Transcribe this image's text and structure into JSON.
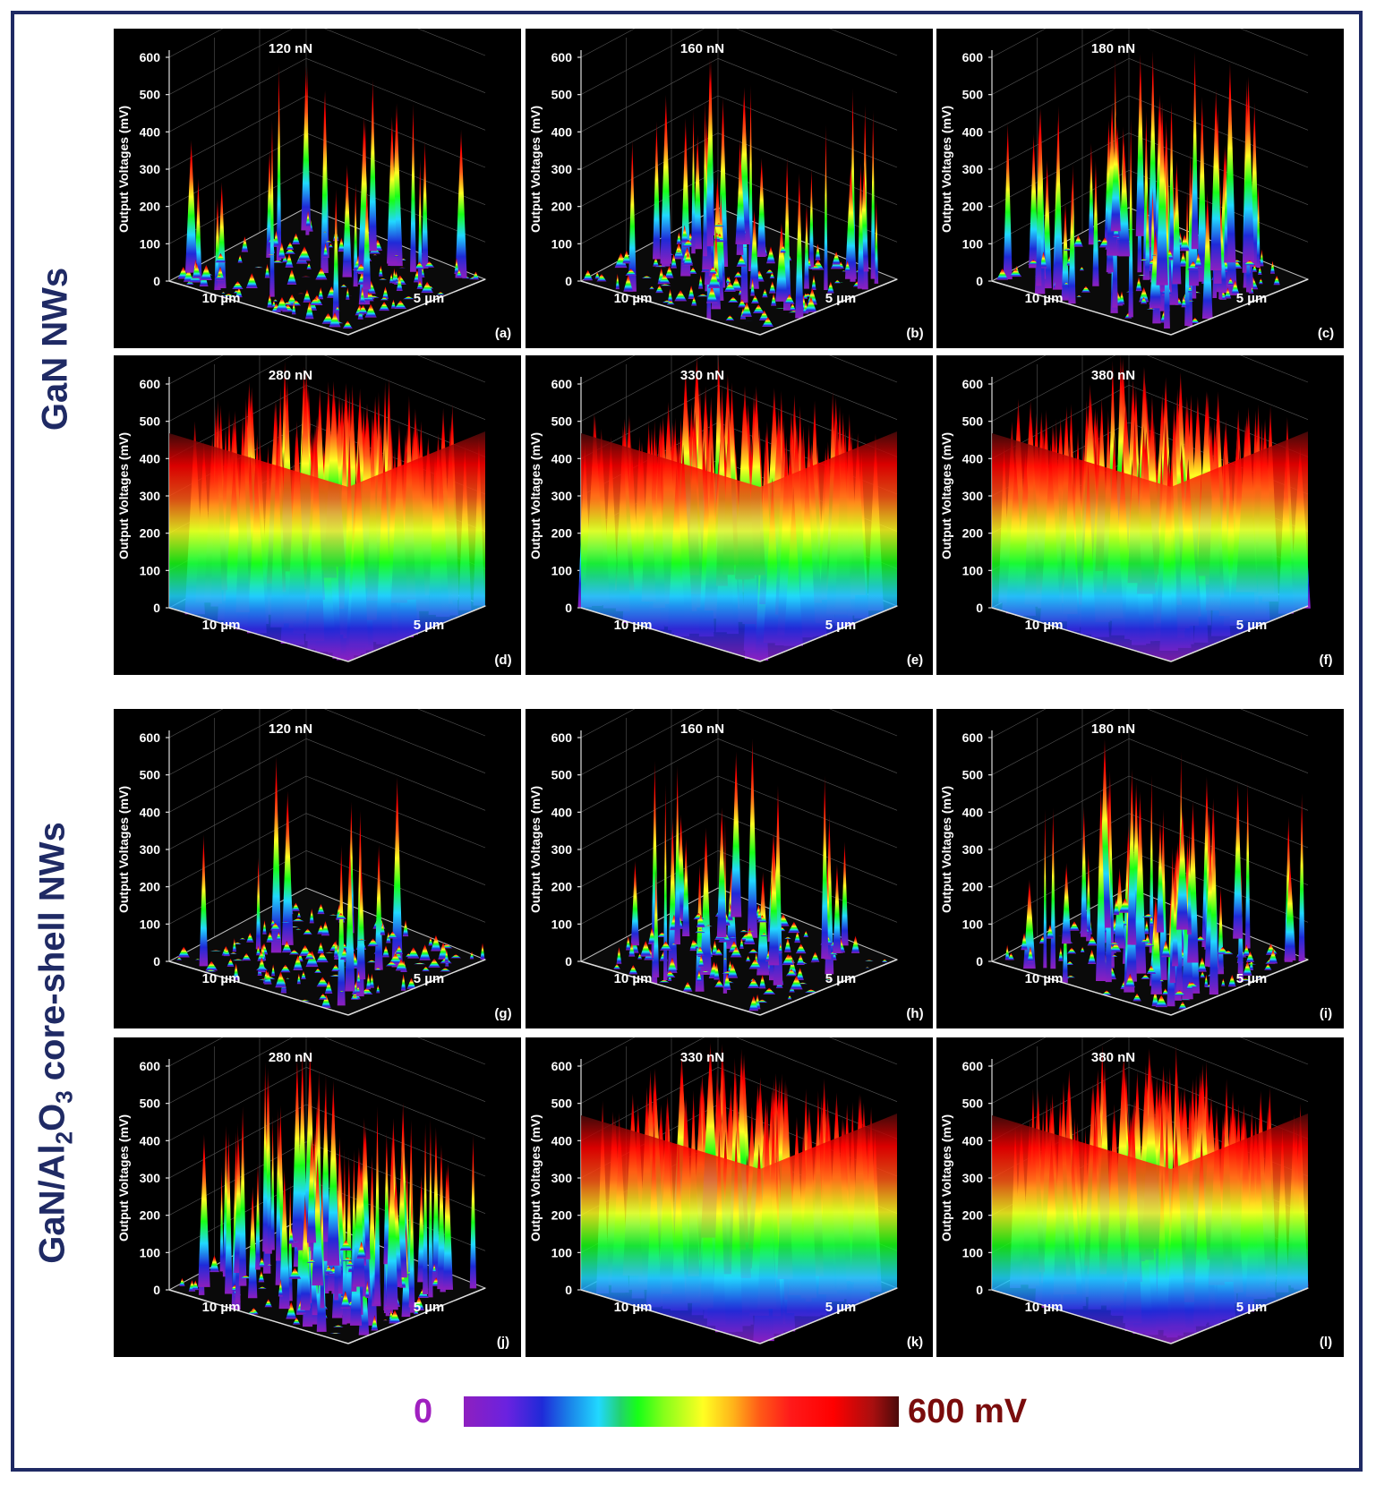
{
  "groups": [
    {
      "label": "GaN NWs"
    },
    {
      "label_parts": [
        "GaN/Al",
        "2",
        "O",
        "3",
        " core-shell NWs"
      ]
    }
  ],
  "colorbar": {
    "min_label": "0",
    "max_label": "600 mV",
    "stops": [
      "#8e1fbf",
      "#1f2ad8",
      "#21d8ff",
      "#17ff17",
      "#ffff22",
      "#ff5a17",
      "#ff0000",
      "#4a0a0a"
    ]
  },
  "chart_data": [
    {
      "type": "3d-surface",
      "panel": "(a)",
      "title": "120 nN",
      "zlabel": "Output Voltages (mV)",
      "zticks": [
        "0",
        "100",
        "200",
        "300",
        "400",
        "500",
        "600"
      ],
      "zlim": [
        0,
        600
      ],
      "x_label": "10 µm",
      "y_label": "5 µm",
      "density": 0.12,
      "plateau": 0
    },
    {
      "type": "3d-surface",
      "panel": "(b)",
      "title": "160 nN",
      "zlabel": "Output Voltages (mV)",
      "zticks": [
        "0",
        "100",
        "200",
        "300",
        "400",
        "500",
        "600"
      ],
      "zlim": [
        0,
        600
      ],
      "x_label": "10 µm",
      "y_label": "5 µm",
      "density": 0.28,
      "plateau": 0
    },
    {
      "type": "3d-surface",
      "panel": "(c)",
      "title": "180 nN",
      "zlabel": "Output Voltages (mV)",
      "zticks": [
        "0",
        "100",
        "200",
        "300",
        "400",
        "500",
        "600"
      ],
      "zlim": [
        0,
        600
      ],
      "x_label": "10 µm",
      "y_label": "5 µm",
      "density": 0.45,
      "plateau": 0
    },
    {
      "type": "3d-surface",
      "panel": "(d)",
      "title": "280 nN",
      "zlabel": "Output Voltages (mV)",
      "zticks": [
        "0",
        "100",
        "200",
        "300",
        "400",
        "500",
        "600"
      ],
      "zlim": [
        0,
        600
      ],
      "x_label": "10 µm",
      "y_label": "5 µm",
      "density": 0.9,
      "plateau": 1
    },
    {
      "type": "3d-surface",
      "panel": "(e)",
      "title": "330 nN",
      "zlabel": "Output Voltages (mV)",
      "zticks": [
        "0",
        "100",
        "200",
        "300",
        "400",
        "500",
        "600"
      ],
      "zlim": [
        0,
        600
      ],
      "x_label": "10 µm",
      "y_label": "5 µm",
      "density": 0.95,
      "plateau": 1
    },
    {
      "type": "3d-surface",
      "panel": "(f)",
      "title": "380 nN",
      "zlabel": "Output Voltages (mV)",
      "zticks": [
        "0",
        "100",
        "200",
        "300",
        "400",
        "500",
        "600"
      ],
      "zlim": [
        0,
        600
      ],
      "x_label": "10 µm",
      "y_label": "5 µm",
      "density": 0.98,
      "plateau": 1
    },
    {
      "type": "3d-surface",
      "panel": "(g)",
      "title": "120 nN",
      "zlabel": "Output Voltages (mV)",
      "zticks": [
        "0",
        "100",
        "200",
        "300",
        "400",
        "500",
        "600"
      ],
      "zlim": [
        0,
        600
      ],
      "x_label": "10 µm",
      "y_label": "5 µm",
      "density": 0.1,
      "plateau": 0
    },
    {
      "type": "3d-surface",
      "panel": "(h)",
      "title": "160 nN",
      "zlabel": "Output Voltages (mV)",
      "zticks": [
        "0",
        "100",
        "200",
        "300",
        "400",
        "500",
        "600"
      ],
      "zlim": [
        0,
        600
      ],
      "x_label": "10 µm",
      "y_label": "5 µm",
      "density": 0.22,
      "plateau": 0
    },
    {
      "type": "3d-surface",
      "panel": "(i)",
      "title": "180 nN",
      "zlabel": "Output Voltages (mV)",
      "zticks": [
        "0",
        "100",
        "200",
        "300",
        "400",
        "500",
        "600"
      ],
      "zlim": [
        0,
        600
      ],
      "x_label": "10 µm",
      "y_label": "5 µm",
      "density": 0.3,
      "plateau": 0
    },
    {
      "type": "3d-surface",
      "panel": "(j)",
      "title": "280 nN",
      "zlabel": "Output Voltages (mV)",
      "zticks": [
        "0",
        "100",
        "200",
        "300",
        "400",
        "500",
        "600"
      ],
      "zlim": [
        0,
        600
      ],
      "x_label": "10 µm",
      "y_label": "5 µm",
      "density": 0.6,
      "plateau": 0
    },
    {
      "type": "3d-surface",
      "panel": "(k)",
      "title": "330 nN",
      "zlabel": "Output Voltages (mV)",
      "zticks": [
        "0",
        "100",
        "200",
        "300",
        "400",
        "500",
        "600"
      ],
      "zlim": [
        0,
        600
      ],
      "x_label": "10 µm",
      "y_label": "5 µm",
      "density": 0.92,
      "plateau": 1
    },
    {
      "type": "3d-surface",
      "panel": "(l)",
      "title": "380 nN",
      "zlabel": "Output Voltages (mV)",
      "zticks": [
        "0",
        "100",
        "200",
        "300",
        "400",
        "500",
        "600"
      ],
      "zlim": [
        0,
        600
      ],
      "x_label": "10 µm",
      "y_label": "5 µm",
      "density": 0.98,
      "plateau": 1
    }
  ]
}
